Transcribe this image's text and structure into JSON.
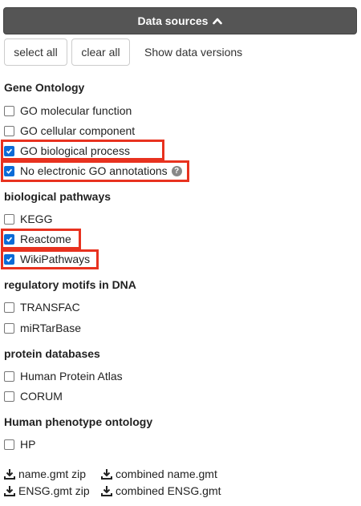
{
  "header": {
    "title": "Data sources",
    "icon": "chevron-up-icon",
    "bg_color": "#555555"
  },
  "toolbar": {
    "select_all": "select all",
    "clear_all": "clear all",
    "show_versions": "Show data versions"
  },
  "sections": {
    "go": {
      "title": "Gene Ontology",
      "items": [
        {
          "label": "GO molecular function",
          "checked": false
        },
        {
          "label": "GO cellular component",
          "checked": false
        },
        {
          "label": "GO biological process",
          "checked": true
        },
        {
          "label": "No electronic GO annotations",
          "checked": true
        }
      ]
    },
    "pathways": {
      "title": "biological pathways",
      "items": [
        {
          "label": "KEGG",
          "checked": false
        },
        {
          "label": "Reactome",
          "checked": true
        },
        {
          "label": "WikiPathways",
          "checked": true
        }
      ]
    },
    "motifs": {
      "title": "regulatory motifs in DNA",
      "items": [
        {
          "label": "TRANSFAC",
          "checked": false
        },
        {
          "label": "miRTarBase",
          "checked": false
        }
      ]
    },
    "protein": {
      "title": "protein databases",
      "items": [
        {
          "label": "Human Protein Atlas",
          "checked": false
        },
        {
          "label": "CORUM",
          "checked": false
        }
      ]
    },
    "phenotype": {
      "title": "Human phenotype ontology",
      "items": [
        {
          "label": "HP",
          "checked": false
        }
      ]
    }
  },
  "downloads": {
    "name_zip": "name.gmt zip",
    "combined_name": "combined name.gmt",
    "ensg_zip": "ENSG.gmt zip",
    "combined_ensg": "combined ENSG.gmt"
  },
  "colors": {
    "checkbox_checked": "#0b6bd7",
    "highlight": "#e8321f"
  }
}
